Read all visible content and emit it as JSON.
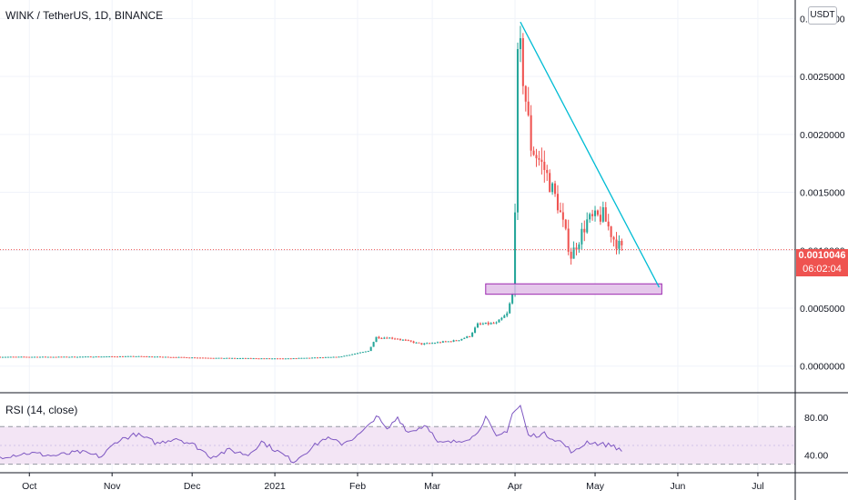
{
  "header": {
    "title": "WINK / TetherUS, 1D, BINANCE",
    "currency_button": "USDT"
  },
  "indicator": {
    "title": "RSI (14, close)"
  },
  "last_price": {
    "value": "0.0010046",
    "countdown": "06:02:04",
    "color": "#ef5350"
  },
  "colors": {
    "up": "#26a69a",
    "down": "#ef5350",
    "trendline": "#00bcd4",
    "support_fill": "#e1bee7",
    "support_border": "#9c27b0",
    "rsi_line": "#7e57c2",
    "rsi_band": "#f3e5f5"
  },
  "chart_data": [
    {
      "type": "candlestick",
      "x_ticks": [
        {
          "label": "Oct",
          "month": "2020-10"
        },
        {
          "label": "Nov",
          "month": "2020-11"
        },
        {
          "label": "Dec",
          "month": "2020-12"
        },
        {
          "label": "2021",
          "month": "2021-01"
        },
        {
          "label": "Feb",
          "month": "2021-02"
        },
        {
          "label": "Mar",
          "month": "2021-03"
        },
        {
          "label": "Apr",
          "month": "2021-04"
        },
        {
          "label": "May",
          "month": "2021-05"
        },
        {
          "label": "Jun",
          "month": "2021-06"
        },
        {
          "label": "Jul",
          "month": "2021-07"
        }
      ],
      "x_range": [
        "2020-09-20",
        "2021-07-15"
      ],
      "y_ticks": [
        "0.0030000",
        "0.0025000",
        "0.0020000",
        "0.0015000",
        "0.0010000",
        "0.0005000",
        "0.0000000"
      ],
      "y_tick_values": [
        0.003,
        0.0025,
        0.002,
        0.0015,
        0.001,
        0.0005,
        0.0
      ],
      "ylim": [
        -0.00023,
        0.00316
      ],
      "grid": true,
      "ohlc_anchors": [
        [
          "2020-09-20",
          8e-05
        ],
        [
          "2020-10-15",
          8e-05
        ],
        [
          "2020-11-10",
          8.5e-05
        ],
        [
          "2020-12-10",
          7e-05
        ],
        [
          "2021-01-05",
          6.5e-05
        ],
        [
          "2021-01-25",
          8e-05
        ],
        [
          "2021-02-05",
          0.00013
        ],
        [
          "2021-02-08",
          0.00025
        ],
        [
          "2021-02-15",
          0.00024
        ],
        [
          "2021-02-25",
          0.00019
        ],
        [
          "2021-03-10",
          0.00022
        ],
        [
          "2021-03-15",
          0.00026
        ],
        [
          "2021-03-18",
          0.00036
        ],
        [
          "2021-03-25",
          0.00037
        ],
        [
          "2021-03-29",
          0.00045
        ],
        [
          "2021-03-31",
          0.00062
        ],
        [
          "2021-04-01",
          0.0014
        ],
        [
          "2021-04-02",
          0.0026
        ],
        [
          "2021-04-03",
          0.0027
        ],
        [
          "2021-04-05",
          0.0023
        ],
        [
          "2021-04-07",
          0.0019
        ],
        [
          "2021-04-12",
          0.0017
        ],
        [
          "2021-04-17",
          0.0014
        ],
        [
          "2021-04-22",
          0.00095
        ],
        [
          "2021-04-28",
          0.00125
        ],
        [
          "2021-05-04",
          0.0013
        ],
        [
          "2021-05-08",
          0.0011
        ],
        [
          "2021-05-11",
          0.0010046
        ]
      ],
      "trendline": {
        "from": [
          "2021-04-03",
          0.00297
        ],
        "to": [
          "2021-05-25",
          0.00068
        ]
      },
      "support_zone": {
        "from": "2021-03-21",
        "to": "2021-05-26",
        "low": 0.00062,
        "high": 0.00071
      },
      "last_price_line": 0.0010046
    },
    {
      "type": "line",
      "name": "RSI (14, close)",
      "y_ticks": [
        "80.00",
        "40.00"
      ],
      "y_tick_values": [
        80,
        40
      ],
      "ylim": [
        21,
        105
      ],
      "band": [
        30,
        70
      ],
      "midline": 50,
      "rsi_anchors": [
        [
          "2020-09-20",
          38
        ],
        [
          "2020-10-01",
          42
        ],
        [
          "2020-10-10",
          39
        ],
        [
          "2020-10-20",
          43
        ],
        [
          "2020-10-28",
          38
        ],
        [
          "2020-11-03",
          55
        ],
        [
          "2020-11-10",
          62
        ],
        [
          "2020-11-18",
          52
        ],
        [
          "2020-11-25",
          58
        ],
        [
          "2020-12-02",
          50
        ],
        [
          "2020-12-08",
          38
        ],
        [
          "2020-12-15",
          45
        ],
        [
          "2020-12-22",
          40
        ],
        [
          "2020-12-27",
          54
        ],
        [
          "2021-01-03",
          42
        ],
        [
          "2021-01-08",
          33
        ],
        [
          "2021-01-14",
          46
        ],
        [
          "2021-01-20",
          58
        ],
        [
          "2021-01-26",
          52
        ],
        [
          "2021-02-01",
          60
        ],
        [
          "2021-02-05",
          70
        ],
        [
          "2021-02-08",
          82
        ],
        [
          "2021-02-12",
          66
        ],
        [
          "2021-02-16",
          80
        ],
        [
          "2021-02-20",
          64
        ],
        [
          "2021-02-27",
          72
        ],
        [
          "2021-03-03",
          52
        ],
        [
          "2021-03-10",
          54
        ],
        [
          "2021-03-17",
          60
        ],
        [
          "2021-03-21",
          80
        ],
        [
          "2021-03-25",
          58
        ],
        [
          "2021-03-29",
          66
        ],
        [
          "2021-03-31",
          84
        ],
        [
          "2021-04-03",
          92
        ],
        [
          "2021-04-06",
          60
        ],
        [
          "2021-04-12",
          62
        ],
        [
          "2021-04-18",
          54
        ],
        [
          "2021-04-23",
          42
        ],
        [
          "2021-04-28",
          54
        ],
        [
          "2021-05-04",
          51
        ],
        [
          "2021-05-08",
          50
        ],
        [
          "2021-05-11",
          43
        ]
      ]
    }
  ]
}
